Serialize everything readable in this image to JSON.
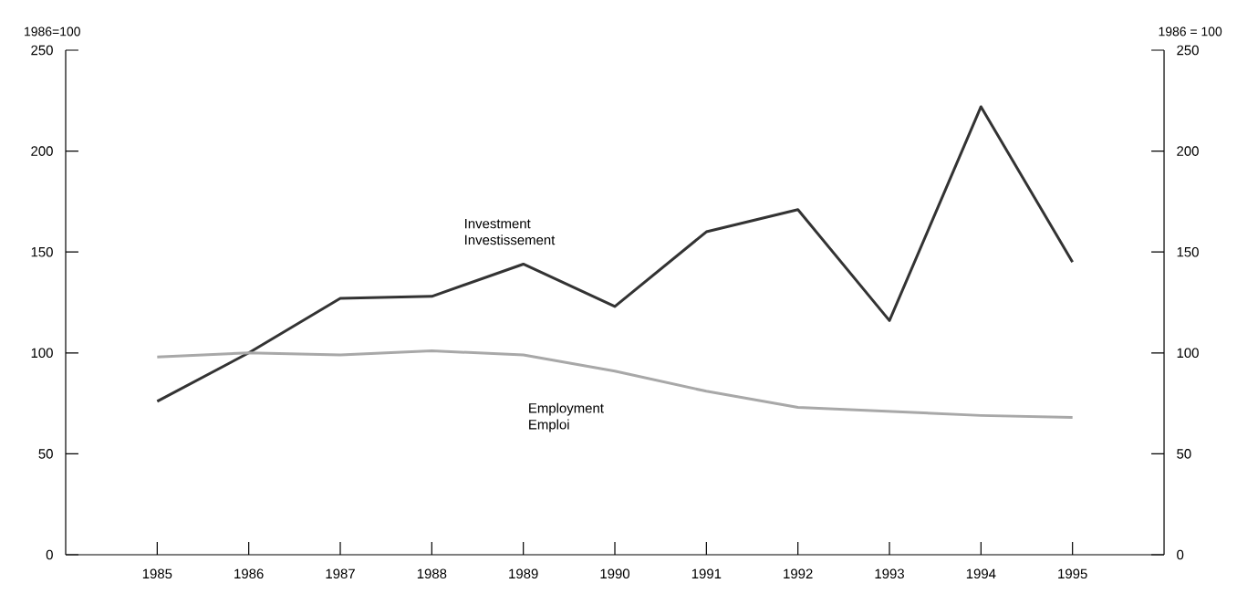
{
  "chart_data": {
    "type": "line",
    "ylabel": "1986=100",
    "y2label": "1986 = 100",
    "x": [
      1985,
      1986,
      1987,
      1988,
      1989,
      1990,
      1991,
      1992,
      1993,
      1994,
      1995
    ],
    "series": [
      {
        "name": "Investment Investissement",
        "color": "#333333",
        "values": [
          76,
          100,
          127,
          128,
          144,
          123,
          160,
          171,
          116,
          222,
          145
        ]
      },
      {
        "name": "Employment Emploi",
        "color": "#a8a8a8",
        "values": [
          98,
          100,
          99,
          101,
          99,
          91,
          81,
          73,
          71,
          69,
          68
        ]
      }
    ],
    "xlim": [
      1984,
      1996
    ],
    "xticks": [
      1985,
      1986,
      1987,
      1988,
      1989,
      1990,
      1991,
      1992,
      1993,
      1994,
      1995
    ],
    "ylim": [
      0,
      250
    ],
    "yticks": [
      0,
      50,
      100,
      150,
      200,
      250
    ],
    "y2lim": [
      0,
      250
    ],
    "y2ticks": [
      0,
      50,
      100,
      150,
      200,
      250
    ],
    "grid": false,
    "legend": false,
    "marker": "none",
    "line_style": "solid"
  }
}
